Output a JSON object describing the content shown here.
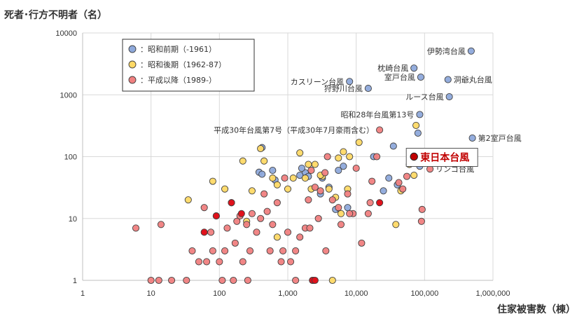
{
  "chart_data": {
    "type": "scatter",
    "title": "",
    "ylabel": "死者･行方不明者（名）",
    "xlabel": "住家被害数（棟）",
    "xscale": "log",
    "yscale": "log",
    "xlim": [
      1,
      1000000
    ],
    "ylim": [
      1,
      10000
    ],
    "x_ticks": [
      1,
      10,
      100,
      1000,
      10000,
      100000,
      1000000
    ],
    "x_tick_labels": [
      "1",
      "10",
      "100",
      "1,000",
      "10,000",
      "100,000",
      "1,000,000"
    ],
    "y_ticks": [
      1,
      10,
      100,
      1000,
      10000
    ],
    "y_tick_labels": [
      "1",
      "10",
      "100",
      "1000",
      "10000"
    ],
    "grid": true,
    "legend": "top-left",
    "series": [
      {
        "name": "昭和前期（-1961）",
        "color": "#8EA9DB",
        "points": [
          [
            480000,
            5100
          ],
          [
            88000,
            1930
          ],
          [
            70000,
            2700
          ],
          [
            220000,
            1760
          ],
          [
            15000,
            1270
          ],
          [
            8000,
            1640
          ],
          [
            230000,
            930
          ],
          [
            85000,
            480
          ],
          [
            80000,
            240
          ],
          [
            500000,
            200
          ],
          [
            85000,
            70
          ],
          [
            60000,
            75
          ],
          [
            35000,
            148
          ],
          [
            30000,
            45
          ],
          [
            40000,
            35
          ],
          [
            18000,
            100
          ],
          [
            6500,
            70
          ],
          [
            5500,
            60
          ],
          [
            4000,
            32
          ],
          [
            3200,
            45
          ],
          [
            1800,
            55
          ],
          [
            2000,
            48
          ],
          [
            1500,
            50
          ],
          [
            420,
            140
          ],
          [
            380,
            56
          ],
          [
            420,
            52
          ],
          [
            600,
            60
          ],
          [
            650,
            42
          ],
          [
            7500,
            15
          ],
          [
            5000,
            14
          ],
          [
            1600,
            65
          ],
          [
            3000,
            25
          ],
          [
            25000,
            28
          ]
        ]
      },
      {
        "name": "昭和後期（1962-87）",
        "color": "#FFD966",
        "points": [
          [
            75000,
            320
          ],
          [
            60000,
            75
          ],
          [
            70000,
            50
          ],
          [
            45000,
            28
          ],
          [
            38000,
            8
          ],
          [
            11000,
            170
          ],
          [
            8000,
            100
          ],
          [
            6500,
            120
          ],
          [
            5500,
            95
          ],
          [
            4000,
            30
          ],
          [
            3200,
            48
          ],
          [
            2500,
            75
          ],
          [
            2200,
            30
          ],
          [
            1800,
            45
          ],
          [
            1500,
            115
          ],
          [
            1200,
            45
          ],
          [
            1000,
            30
          ],
          [
            700,
            35
          ],
          [
            600,
            45
          ],
          [
            450,
            85
          ],
          [
            400,
            135
          ],
          [
            300,
            28
          ],
          [
            250,
            9
          ],
          [
            220,
            85
          ],
          [
            120,
            30
          ],
          [
            80,
            40
          ],
          [
            35,
            20
          ],
          [
            5000,
            22
          ],
          [
            3000,
            50
          ],
          [
            7500,
            30
          ],
          [
            6000,
            12
          ],
          [
            2000,
            75
          ],
          [
            700,
            5
          ],
          [
            4500,
            1
          ]
        ]
      },
      {
        "name": "平成以降（1989-）",
        "color": "#F08080",
        "points": [
          [
            22000,
            270
          ],
          [
            20000,
            100
          ],
          [
            17000,
            40
          ],
          [
            15000,
            12
          ],
          [
            12000,
            4
          ],
          [
            9000,
            12
          ],
          [
            7500,
            25
          ],
          [
            6000,
            8
          ],
          [
            5500,
            15
          ],
          [
            4500,
            20
          ],
          [
            3800,
            100
          ],
          [
            3500,
            55
          ],
          [
            3000,
            28
          ],
          [
            2800,
            10
          ],
          [
            2500,
            32
          ],
          [
            2200,
            60
          ],
          [
            2000,
            20
          ],
          [
            1800,
            7
          ],
          [
            1500,
            5
          ],
          [
            1300,
            3
          ],
          [
            1000,
            6
          ],
          [
            900,
            45
          ],
          [
            850,
            3
          ],
          [
            800,
            2
          ],
          [
            700,
            18
          ],
          [
            600,
            8
          ],
          [
            550,
            3
          ],
          [
            500,
            13
          ],
          [
            450,
            25
          ],
          [
            400,
            10
          ],
          [
            350,
            6
          ],
          [
            300,
            12
          ],
          [
            280,
            3
          ],
          [
            250,
            8
          ],
          [
            220,
            2
          ],
          [
            200,
            11
          ],
          [
            180,
            9
          ],
          [
            170,
            4
          ],
          [
            150,
            18
          ],
          [
            130,
            7
          ],
          [
            120,
            3
          ],
          [
            100,
            2
          ],
          [
            90,
            11
          ],
          [
            80,
            3
          ],
          [
            75,
            6
          ],
          [
            65,
            2
          ],
          [
            60,
            15
          ],
          [
            50,
            2
          ],
          [
            40,
            3
          ],
          [
            33,
            1
          ],
          [
            20,
            1
          ],
          [
            14,
            8
          ],
          [
            13,
            1
          ],
          [
            10,
            1
          ],
          [
            6,
            7
          ],
          [
            110,
            1
          ],
          [
            160,
            1
          ],
          [
            260,
            1
          ],
          [
            2400,
            1
          ],
          [
            1100,
            2
          ],
          [
            1300,
            1
          ],
          [
            2100,
            7
          ],
          [
            3600,
            3
          ],
          [
            2300,
            1
          ],
          [
            8000,
            12
          ],
          [
            10000,
            65
          ],
          [
            55000,
            48
          ],
          [
            42000,
            38
          ],
          [
            48000,
            30
          ],
          [
            90000,
            9
          ],
          [
            92000,
            14
          ],
          [
            120000,
            63
          ],
          [
            16000,
            18
          ]
        ]
      }
    ],
    "dark_points": [
      [
        150,
        18
      ],
      [
        90,
        11
      ],
      [
        60,
        6
      ],
      [
        22000,
        18
      ],
      [
        2300,
        1
      ],
      [
        2500,
        1
      ],
      [
        210,
        12
      ]
    ],
    "highlight": {
      "label": "東日本台風",
      "x": 70000,
      "y": 100,
      "color": "#C00000"
    },
    "annotations": [
      {
        "text": "伊勢湾台風",
        "x": 480000,
        "y": 5100,
        "anchor": "end"
      },
      {
        "text": "枕崎台風",
        "x": 70000,
        "y": 2700,
        "anchor": "end"
      },
      {
        "text": "室戸台風",
        "x": 88000,
        "y": 1930,
        "anchor": "end"
      },
      {
        "text": "洞爺丸台風",
        "x": 220000,
        "y": 1760,
        "anchor": "start"
      },
      {
        "text": "カスリーン台風",
        "x": 8000,
        "y": 1640,
        "anchor": "end"
      },
      {
        "text": "狩野川台風",
        "x": 15000,
        "y": 1270,
        "anchor": "end"
      },
      {
        "text": "ルース台風",
        "x": 230000,
        "y": 930,
        "anchor": "end"
      },
      {
        "text": "昭和28年台風第13号",
        "x": 85000,
        "y": 480,
        "anchor": "end"
      },
      {
        "text": "平成30年台風第7号（平成30年7月豪雨含む）",
        "x": 22000,
        "y": 270,
        "anchor": "end"
      },
      {
        "text": "第2室戸台風",
        "x": 500000,
        "y": 200,
        "anchor": "start"
      },
      {
        "text": "リンゴ台風",
        "x": 120000,
        "y": 63,
        "anchor": "start"
      }
    ]
  }
}
